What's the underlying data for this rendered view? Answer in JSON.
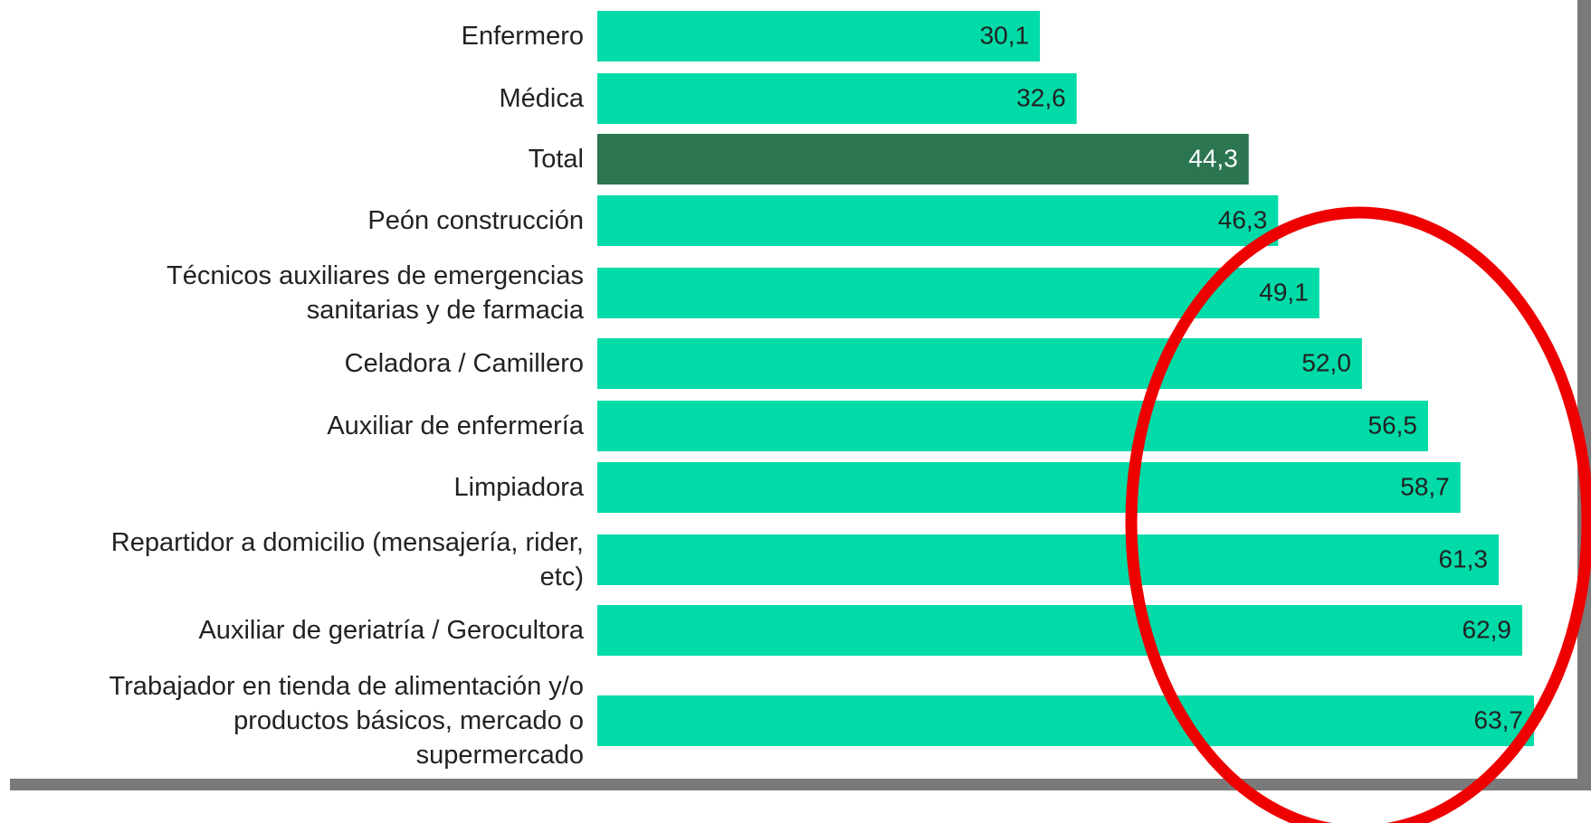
{
  "chart_data": {
    "type": "bar",
    "orientation": "horizontal",
    "categories": [
      "Enfermero",
      "Médica",
      "Total",
      "Peón construcción",
      "Técnicos auxiliares de emergencias\nsanitarias y de farmacia",
      "Celadora / Camillero",
      "Auxiliar de enfermería",
      "Limpiadora",
      "Repartidor a domicilio (mensajería, rider,\netc)",
      "Auxiliar de geriatría / Gerocultora",
      "Trabajador en tienda de alimentación y/o\nproductos básicos, mercado o\nsupermercado"
    ],
    "values": [
      30.1,
      32.6,
      44.3,
      46.3,
      49.1,
      52.0,
      56.5,
      58.7,
      61.3,
      62.9,
      63.7
    ],
    "value_labels": [
      "30,1",
      "32,6",
      "44,3",
      "46,3",
      "49,1",
      "52,0",
      "56,5",
      "58,7",
      "61,3",
      "62,9",
      "63,7"
    ],
    "colors": [
      "#00dba8",
      "#00dba8",
      "#2b7551",
      "#00dba8",
      "#00dba8",
      "#00dba8",
      "#00dba8",
      "#00dba8",
      "#00dba8",
      "#00dba8",
      "#00dba8"
    ]
  }
}
